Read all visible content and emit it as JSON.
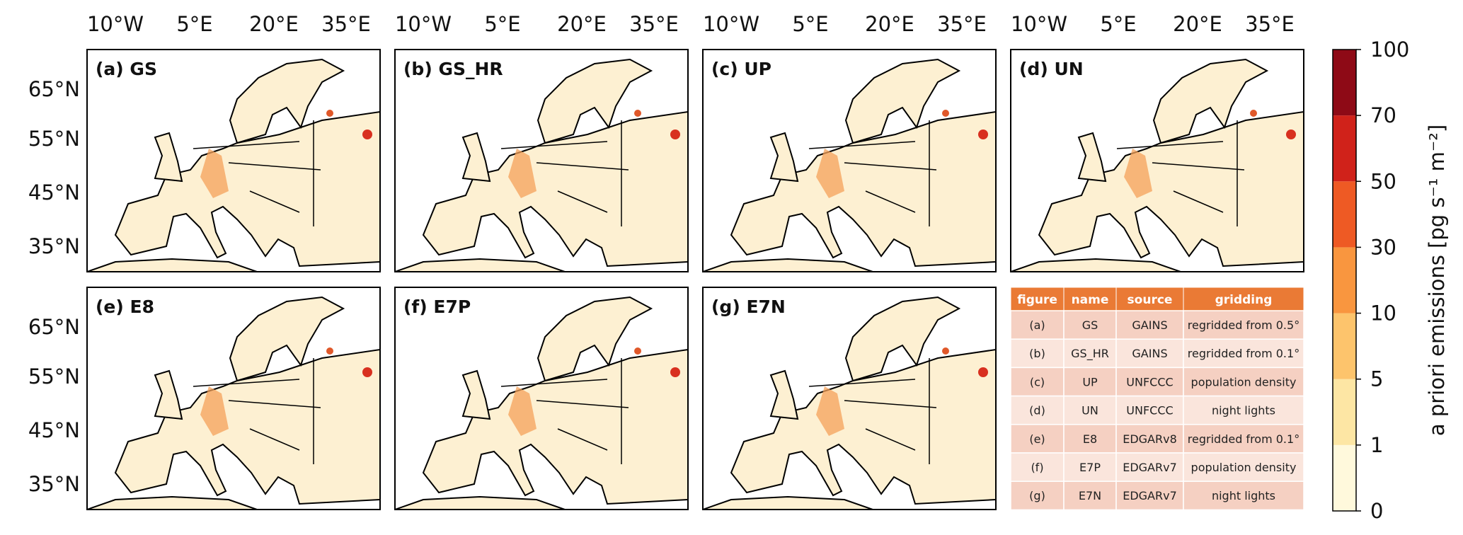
{
  "lon_ticks": [
    "10°W",
    "5°E",
    "20°E",
    "35°E"
  ],
  "lat_ticks": [
    "65°N",
    "55°N",
    "45°N",
    "35°N"
  ],
  "panels": [
    "(a) GS",
    "(b) GS_HR",
    "(c) UP",
    "(d) UN",
    "(e) E8",
    "(f) E7P",
    "(g) E7N"
  ],
  "table": {
    "header": [
      "figure",
      "name",
      "source",
      "gridding"
    ],
    "rows": [
      [
        "(a)",
        "GS",
        "GAINS",
        "regridded from 0.5°"
      ],
      [
        "(b)",
        "GS_HR",
        "GAINS",
        "regridded from 0.1°"
      ],
      [
        "(c)",
        "UP",
        "UNFCCC",
        "population density"
      ],
      [
        "(d)",
        "UN",
        "UNFCCC",
        "night lights"
      ],
      [
        "(e)",
        "E8",
        "EDGARv8",
        "regridded from 0.1°"
      ],
      [
        "(f)",
        "E7P",
        "EDGARv7",
        "population density"
      ],
      [
        "(g)",
        "E7N",
        "EDGARv7",
        "night lights"
      ]
    ]
  },
  "colorbar": {
    "label": "a priori emissions [pg s⁻¹ m⁻²]",
    "ticks": [
      0,
      1,
      5,
      10,
      30,
      50,
      70,
      100
    ],
    "colors": [
      "#fff9dc",
      "#fde6a4",
      "#fdc46c",
      "#f9963f",
      "#ee5a24",
      "#d0221a",
      "#8e0a16"
    ]
  }
}
